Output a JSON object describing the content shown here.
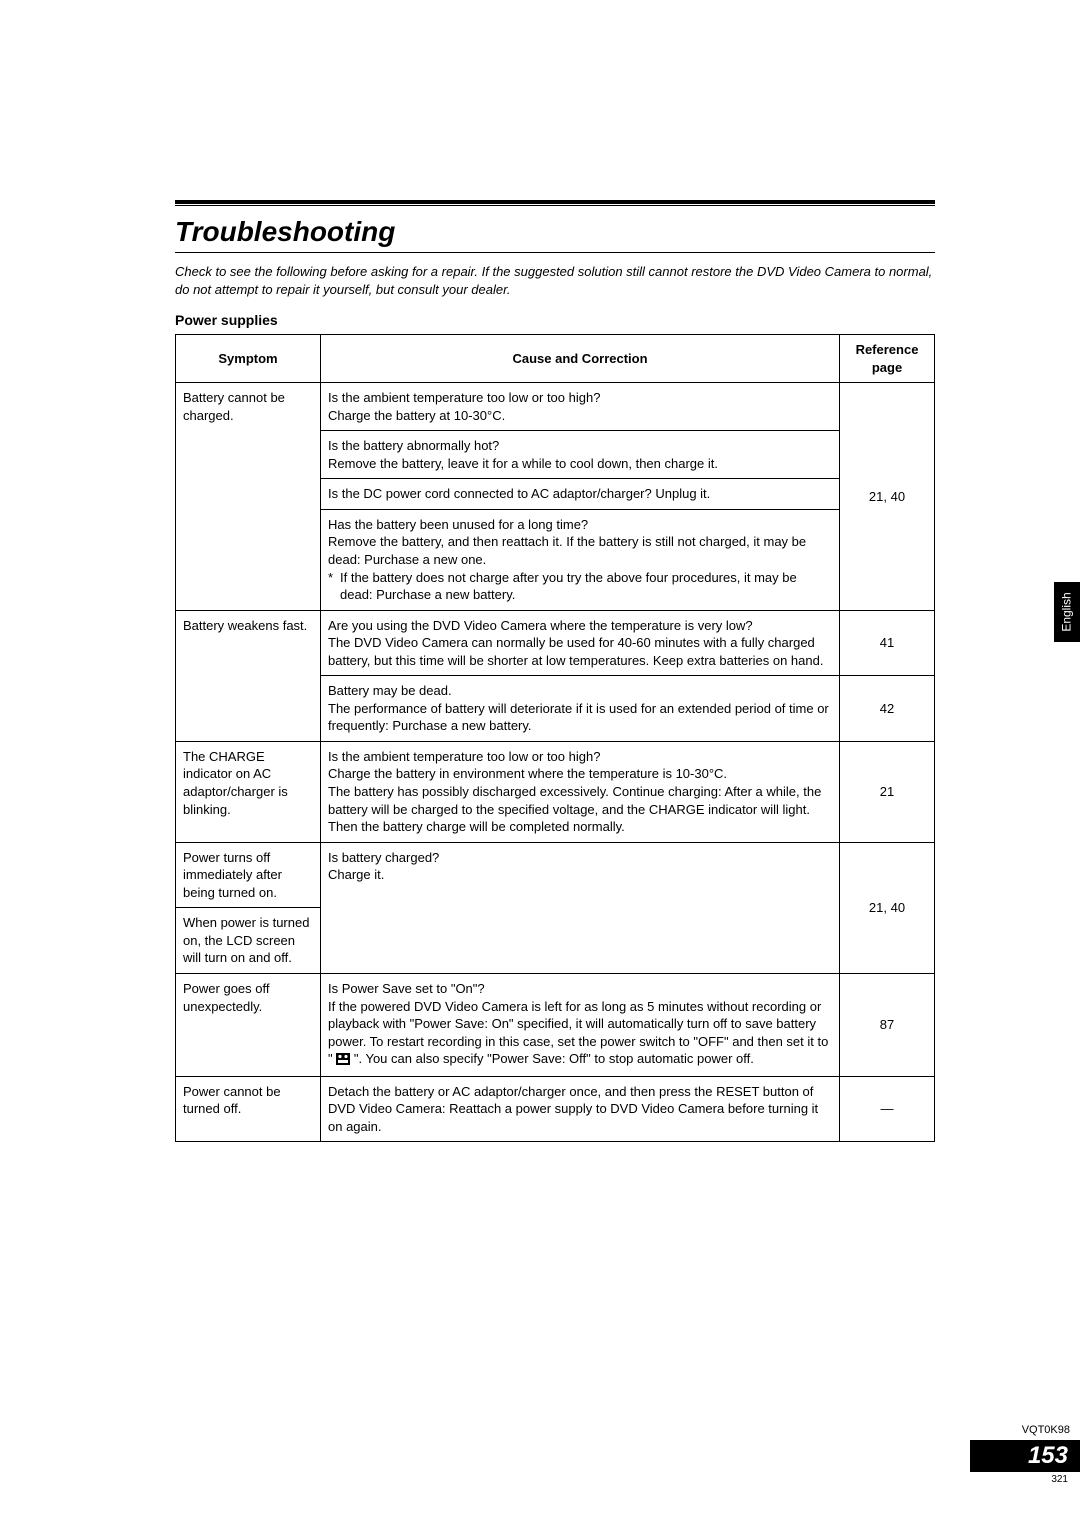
{
  "title": "Troubleshooting",
  "intro": "Check to see the following before asking for a repair. If the suggested solution still cannot restore the DVD Video Camera to normal, do not attempt to repair it yourself, but consult your dealer.",
  "section": "Power supplies",
  "side_tab": "English",
  "headers": {
    "symptom": "Symptom",
    "cause": "Cause and Correction",
    "reference": "Reference page"
  },
  "rows": {
    "r1_sym": "Battery cannot be charged.",
    "r1_c1": "Is the ambient temperature too low or too high?\nCharge the battery at 10-30°C.",
    "r1_c2": "Is the battery abnormally hot?\nRemove the battery, leave it for a while to cool down, then charge it.",
    "r1_c3": "Is the DC power cord connected to AC adaptor/charger? Unplug it.",
    "r1_c4a": "Has the battery been unused for a long time?\nRemove the battery, and then reattach it. If the battery is still not charged, it may be dead: Purchase a new one.",
    "r1_c4b": "If the battery does not charge after you try the above four procedures, it may be dead: Purchase a new battery.",
    "r1_ref": "21, 40",
    "r2_sym": "Battery weakens fast.",
    "r2_c1": "Are you using the DVD Video Camera where the temperature is very low?\nThe DVD Video Camera can normally be used for 40-60 minutes with a fully charged battery, but this time will be shorter at low temperatures. Keep extra batteries on hand.",
    "r2_ref1": "41",
    "r2_c2": "Battery may be dead.\nThe performance of battery will deteriorate if it is used for an extended period of time or frequently: Purchase a new battery.",
    "r2_ref2": "42",
    "r3_sym": "The CHARGE indicator on AC adaptor/charger is blinking.",
    "r3_c1": "Is the ambient temperature too low or too high?\nCharge the battery in environment where the temperature is 10-30°C.\nThe battery has possibly discharged excessively. Continue charging: After a while, the battery will be charged to the specified voltage, and the CHARGE indicator will light. Then the battery charge will be completed normally.",
    "r3_ref": "21",
    "r4_sym": "Power turns off immediately after being turned on.",
    "r4_c1": "Is battery charged?\nCharge it.",
    "r4_ref": "21, 40",
    "r5_sym": "When power is turned on, the LCD screen will turn on and off.",
    "r6_sym": "Power goes off unexpectedly.",
    "r6_c1a": "Is Power Save set to \"On\"?\nIf the powered DVD Video Camera is left for as long as 5 minutes without recording or playback with \"Power Save: On\" specified, it will automatically turn off to save battery power. To restart recording in this case, set the power switch to \"OFF\" and then set it to \"",
    "r6_c1b": "\". You can also specify \"Power Save: Off\" to stop automatic power off.",
    "r6_ref": "87",
    "r7_sym": "Power cannot be turned off.",
    "r7_c1": "Detach the battery or AC adaptor/charger once, and then press the RESET button of DVD Video Camera: Reattach a power supply to DVD Video Camera before turning it on again.",
    "r7_ref": "—"
  },
  "footer": {
    "doc_code": "VQT0K98",
    "page_num": "153",
    "sub_page": "321"
  }
}
